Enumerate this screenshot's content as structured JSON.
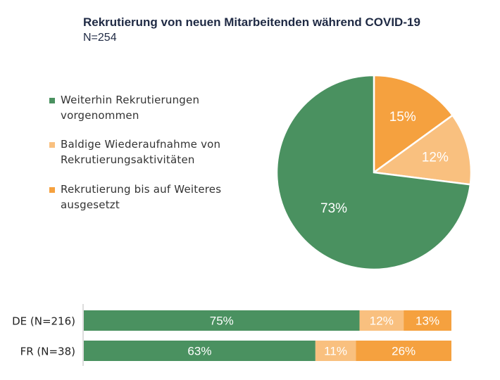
{
  "chart_data": [
    {
      "type": "pie",
      "title": "Rekrutierung von neuen Mitarbeitenden während COVID-19",
      "subtitle": "N=254",
      "legend_placement": "left",
      "slices": [
        {
          "name": "Rekrutierung bis auf Weiteres ausgesetzt",
          "value": 15,
          "label": "15%",
          "color": "#f5a13f"
        },
        {
          "name": "Baldige Wiederaufnahme von Rekrutierungsaktivitäten",
          "value": 12,
          "label": "12%",
          "color": "#f9c07f"
        },
        {
          "name": "Weiterhin Rekrutierungen vorgenommen",
          "value": 73,
          "label": "73%",
          "color": "#4a9160"
        }
      ]
    },
    {
      "type": "bar",
      "orientation": "horizontal",
      "stacked": true,
      "categories": [
        "DE (N=216)",
        "FR (N=38)"
      ],
      "series": [
        {
          "name": "Weiterhin Rekrutierungen vorgenommen",
          "values": [
            75,
            63
          ],
          "labels": [
            "75%",
            "63%"
          ],
          "color": "#4a9160"
        },
        {
          "name": "Baldige Wiederaufnahme von Rekrutierungsaktivitäten",
          "values": [
            12,
            11
          ],
          "labels": [
            "12%",
            "11%"
          ],
          "color": "#f9c07f"
        },
        {
          "name": "Rekrutierung bis auf Weiteres ausgesetzt",
          "values": [
            13,
            26
          ],
          "labels": [
            "13%",
            "26%"
          ],
          "color": "#f5a13f"
        }
      ]
    }
  ],
  "legend": [
    {
      "label": "Weiterhin Rekrutierungen vorgenommen",
      "color": "#4a9160"
    },
    {
      "label": "Baldige Wiederaufnahme von Rekrutierungsaktivitäten",
      "color": "#f9c07f"
    },
    {
      "label": "Rekrutierung bis auf Weiteres ausgesetzt",
      "color": "#f5a13f"
    }
  ]
}
